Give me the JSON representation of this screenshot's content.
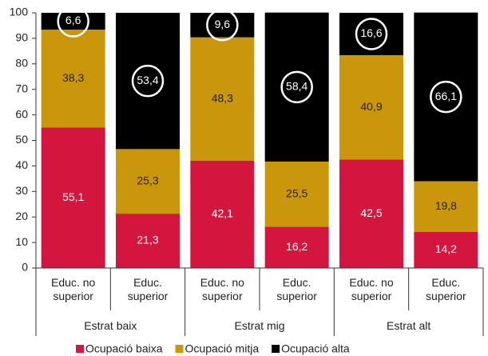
{
  "chart_data": {
    "type": "stacked_bar",
    "categories": [
      "Educ. no superior",
      "Educ. superior",
      "Educ. no superior",
      "Educ. superior",
      "Educ. no superior",
      "Educ. superior"
    ],
    "groups": [
      "Estrat baix",
      "Estrat mig",
      "Estrat alt"
    ],
    "series": [
      {
        "name": "Ocupació baixa",
        "color": "#d4163e",
        "values": [
          55.1,
          21.3,
          42.1,
          16.2,
          42.5,
          14.2
        ],
        "value_labels": [
          "55,1",
          "21,3",
          "42,1",
          "16,2",
          "42,5",
          "14,2"
        ]
      },
      {
        "name": "Ocupació mitja",
        "color": "#c9960c",
        "values": [
          38.3,
          25.3,
          48.3,
          25.5,
          40.9,
          19.8
        ],
        "value_labels": [
          "38,3",
          "25,3",
          "48,3",
          "25,5",
          "40,9",
          "19,8"
        ]
      },
      {
        "name": "Ocupació alta",
        "color": "#000000",
        "values": [
          6.6,
          53.4,
          9.6,
          58.4,
          16.6,
          66.1
        ],
        "value_labels": [
          "6,6",
          "53,4",
          "9,6",
          "58,4",
          "16,6",
          "66,1"
        ]
      }
    ],
    "ylim": [
      0,
      100
    ],
    "yticks": [
      0,
      10,
      20,
      30,
      40,
      50,
      60,
      70,
      80,
      90,
      100
    ]
  }
}
